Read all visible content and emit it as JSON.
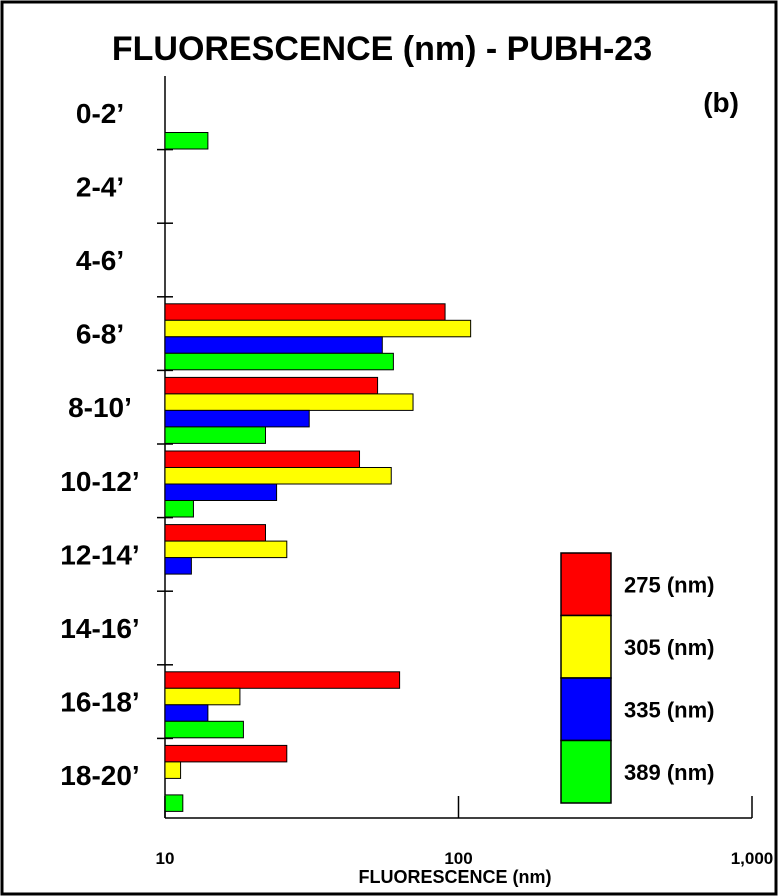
{
  "chart_data": {
    "type": "bar",
    "orientation": "horizontal",
    "title": "FLUORESCENCE  (nm) - PUBH-23",
    "panel_label": "(b)",
    "xlabel": "FLUORESCENCE  (nm)",
    "ylabel": "",
    "x_scale": "log",
    "xlim": [
      10,
      1000
    ],
    "x_ticks": [
      "10",
      "100",
      "1,000"
    ],
    "categories": [
      "0-2’",
      "2-4’",
      "4-6’",
      "6-8’",
      "8-10’",
      "10-12’",
      "12-14’",
      "14-16’",
      "16-18’",
      "18-20’"
    ],
    "series": [
      {
        "name": "275 (nm)",
        "color": "#ff0000",
        "values": [
          null,
          null,
          null,
          90,
          53,
          46,
          22,
          null,
          63,
          26
        ]
      },
      {
        "name": "305 (nm)",
        "color": "#ffff00",
        "values": [
          null,
          null,
          null,
          110,
          70,
          59,
          26,
          null,
          18,
          11.3
        ]
      },
      {
        "name": "335 (nm)",
        "color": "#0000ff",
        "values": [
          null,
          null,
          null,
          55,
          31,
          24,
          12.3,
          null,
          14,
          null
        ]
      },
      {
        "name": "389 (nm)",
        "color": "#00ff00",
        "values": [
          14,
          null,
          null,
          60,
          22,
          12.5,
          null,
          null,
          18.5,
          11.5
        ]
      }
    ],
    "legend_position": "bottom-right",
    "grid": false
  }
}
